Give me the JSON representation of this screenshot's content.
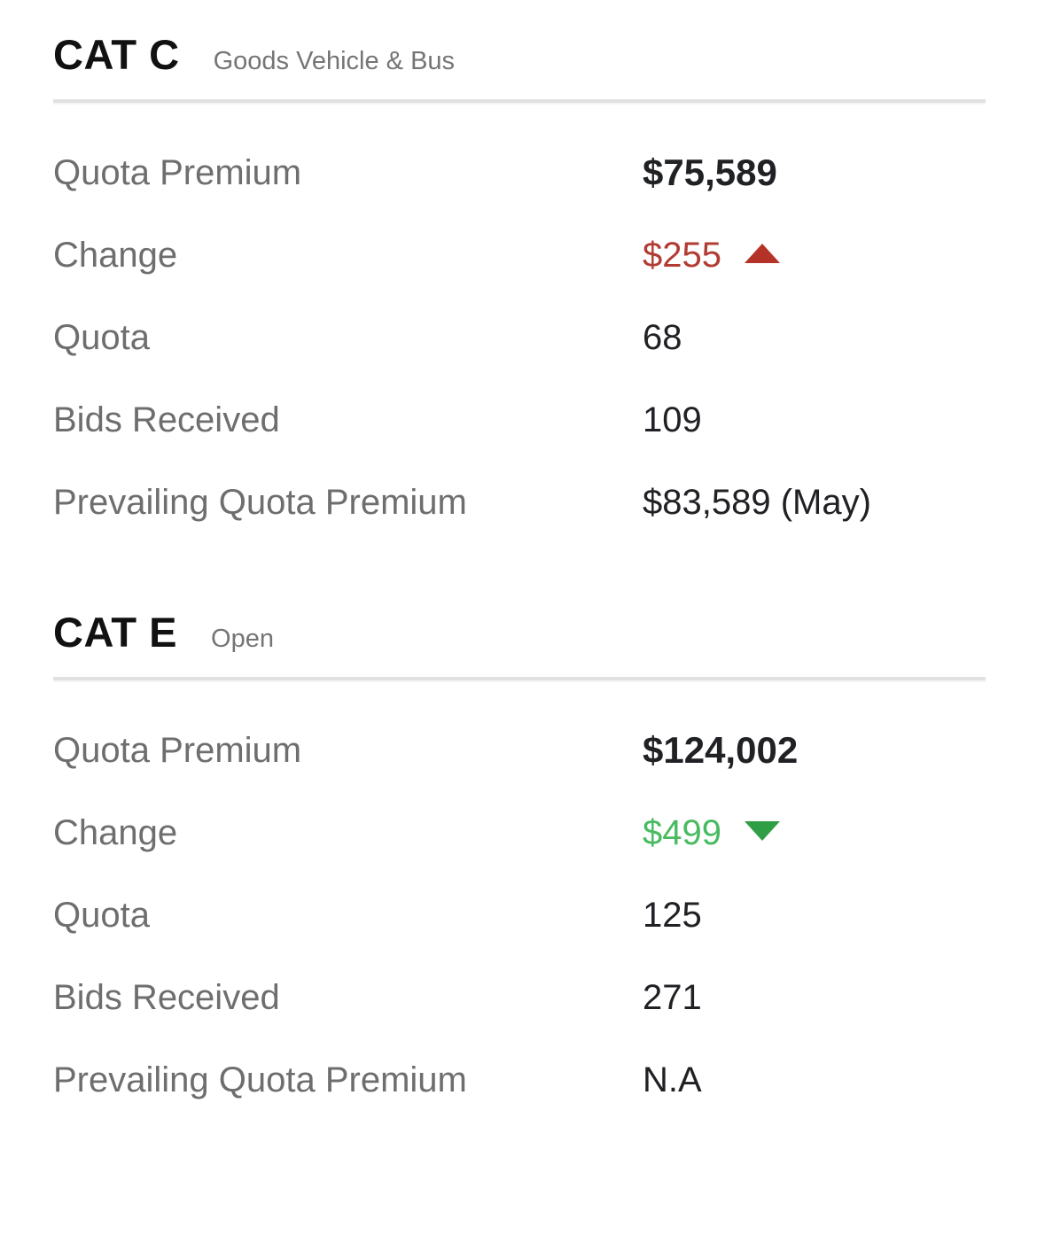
{
  "colors": {
    "label_gray": "#6e6e6e",
    "value_black": "#202124",
    "change_up_text": "#b23c33",
    "change_up_triangle": "#b43228",
    "change_down_text": "#48bb60",
    "change_down_triangle": "#2f9e44",
    "divider": "#e1e1e1",
    "background": "#ffffff"
  },
  "sections": [
    {
      "code": "CAT C",
      "description": "Goods Vehicle & Bus",
      "rows": {
        "quota_premium": {
          "label": "Quota Premium",
          "value": "$75,589"
        },
        "change": {
          "label": "Change",
          "value": "$255",
          "direction": "up"
        },
        "quota": {
          "label": "Quota",
          "value": "68"
        },
        "bids_received": {
          "label": "Bids Received",
          "value": "109"
        },
        "prevailing_quota_premium": {
          "label": "Prevailing Quota Premium",
          "value": "$83,589 (May)"
        }
      }
    },
    {
      "code": "CAT E",
      "description": "Open",
      "rows": {
        "quota_premium": {
          "label": "Quota Premium",
          "value": "$124,002"
        },
        "change": {
          "label": "Change",
          "value": "$499",
          "direction": "down"
        },
        "quota": {
          "label": "Quota",
          "value": "125"
        },
        "bids_received": {
          "label": "Bids Received",
          "value": "271"
        },
        "prevailing_quota_premium": {
          "label": "Prevailing Quota Premium",
          "value": "N.A"
        }
      }
    }
  ]
}
